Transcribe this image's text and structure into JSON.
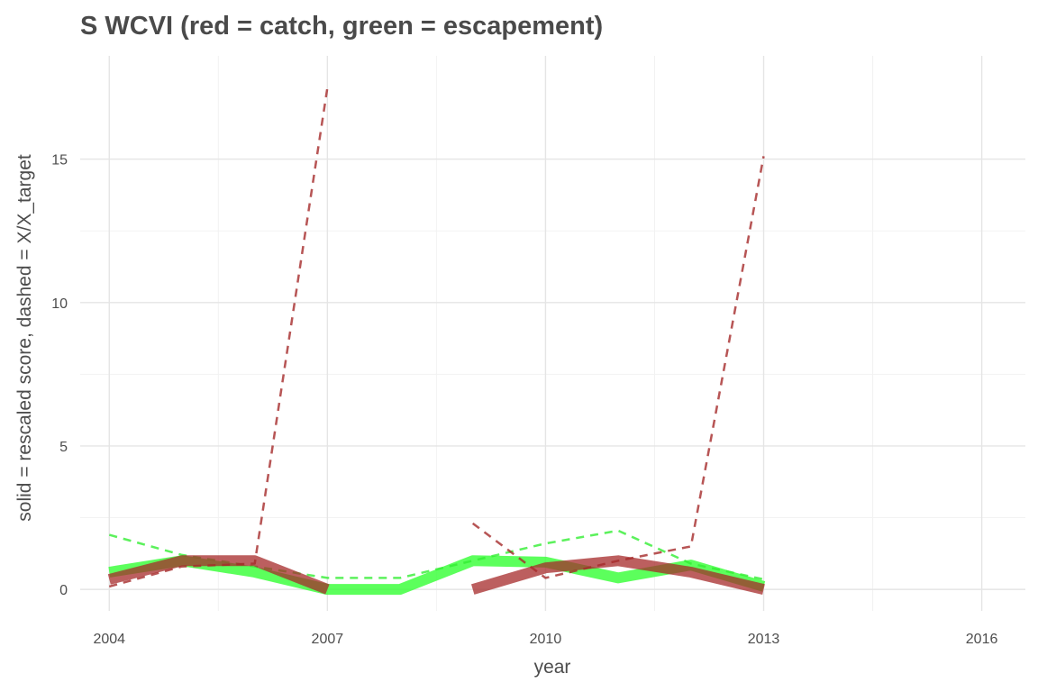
{
  "chart_data": {
    "type": "line",
    "title": "S WCVI (red = catch, green = escapement)",
    "xlabel": "year",
    "ylabel": "solid = rescaled score, dashed = X/X_target",
    "xlim": [
      2003.6,
      2016.6
    ],
    "ylim": [
      -0.75,
      18.6
    ],
    "x_ticks": [
      2004,
      2007,
      2010,
      2013,
      2016
    ],
    "y_ticks": [
      0,
      5,
      10,
      15
    ],
    "grid": true,
    "legend": "none",
    "series": [
      {
        "style": "solid",
        "color": "#33ff33",
        "opacity": 0.8,
        "width": 12,
        "segments": [
          [
            [
              2004,
              0.6
            ],
            [
              2005,
              1.0
            ],
            [
              2006,
              0.6
            ],
            [
              2007,
              0.0
            ],
            [
              2008,
              0.0
            ],
            [
              2009,
              1.0
            ],
            [
              2010,
              0.95
            ],
            [
              2011,
              0.4
            ],
            [
              2012,
              0.85
            ],
            [
              2013,
              0.1
            ]
          ]
        ]
      },
      {
        "style": "dashed",
        "color": "#33ee33",
        "opacity": 0.8,
        "width": 2.5,
        "segments": [
          [
            [
              2004,
              1.9
            ],
            [
              2005,
              1.2
            ],
            [
              2006,
              0.8
            ],
            [
              2007,
              0.4
            ],
            [
              2008,
              0.4
            ],
            [
              2009,
              1.0
            ],
            [
              2010,
              1.6
            ],
            [
              2011,
              2.05
            ],
            [
              2012,
              0.9
            ],
            [
              2013,
              0.35
            ]
          ]
        ]
      },
      {
        "style": "solid",
        "color": "#a52a2a",
        "opacity": 0.75,
        "width": 12,
        "segments": [
          [
            [
              2004,
              0.35
            ],
            [
              2005,
              1.0
            ],
            [
              2006,
              1.0
            ],
            [
              2007,
              0.0
            ]
          ],
          [
            [
              2009,
              0.0
            ],
            [
              2010,
              0.75
            ],
            [
              2011,
              1.0
            ],
            [
              2012,
              0.6
            ],
            [
              2013,
              0.0
            ]
          ]
        ]
      },
      {
        "style": "dashed",
        "color": "#a52a2a",
        "opacity": 0.8,
        "width": 2.5,
        "segments": [
          [
            [
              2004,
              0.1
            ],
            [
              2005,
              0.8
            ],
            [
              2006,
              0.9
            ],
            [
              2007,
              17.5
            ]
          ],
          [
            [
              2009,
              2.3
            ],
            [
              2010,
              0.4
            ],
            [
              2011,
              1.0
            ],
            [
              2012,
              1.5
            ],
            [
              2013,
              15.1
            ]
          ]
        ]
      }
    ]
  }
}
